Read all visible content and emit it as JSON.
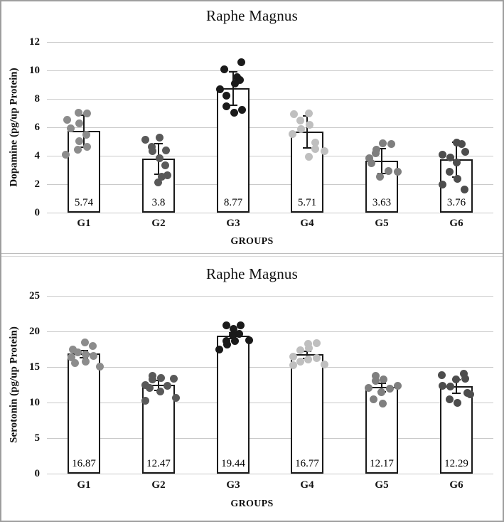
{
  "frame": {
    "outer_border_color": "#9e9e9e",
    "grid_color": "#c9c9c9",
    "bar_fill": "#ffffff",
    "bar_edge_color": "#1a1a1a"
  },
  "chart_data": [
    {
      "type": "bar",
      "title": "Raphe Magnus",
      "xlabel": "GROUPS",
      "ylabel": "Dopamine (pg/up Protein)",
      "ylim": [
        0,
        12
      ],
      "yticks": [
        0,
        2,
        4,
        6,
        8,
        10,
        12
      ],
      "grid": true,
      "legend": null,
      "categories": [
        "G1",
        "G2",
        "G3",
        "G4",
        "G5",
        "G6"
      ],
      "values": [
        5.74,
        3.8,
        8.77,
        5.71,
        3.63,
        3.76
      ],
      "bar_labels": [
        "5.74",
        "3.8",
        "8.77",
        "5.71",
        "3.63",
        "3.76"
      ],
      "error_sd": [
        1.15,
        1.1,
        1.2,
        1.15,
        0.9,
        1.25
      ],
      "point_colors": [
        "#8c8c8c",
        "#595959",
        "#1a1a1a",
        "#bfbfbf",
        "#7f7f7f",
        "#4d4d4d"
      ],
      "points": [
        [
          {
            "dx": -24,
            "v": 6.55
          },
          {
            "dx": -8,
            "v": 7.05
          },
          {
            "dx": 4,
            "v": 7.0
          },
          {
            "dx": -19,
            "v": 5.95
          },
          {
            "dx": -7,
            "v": 6.3
          },
          {
            "dx": 3,
            "v": 5.5
          },
          {
            "dx": -7,
            "v": 5.05
          },
          {
            "dx": -9,
            "v": 4.45
          },
          {
            "dx": 4,
            "v": 4.65
          },
          {
            "dx": -26,
            "v": 4.1
          }
        ],
        [
          {
            "dx": -19,
            "v": 5.15
          },
          {
            "dx": 1,
            "v": 5.3
          },
          {
            "dx": -10,
            "v": 4.65
          },
          {
            "dx": -9,
            "v": 4.35
          },
          {
            "dx": 1,
            "v": 3.85
          },
          {
            "dx": 10,
            "v": 4.4
          },
          {
            "dx": 9,
            "v": 3.35
          },
          {
            "dx": 12,
            "v": 2.65
          },
          {
            "dx": -1,
            "v": 2.15
          },
          {
            "dx": 4,
            "v": 2.55
          }
        ],
        [
          {
            "dx": 12,
            "v": 10.6
          },
          {
            "dx": -12,
            "v": 10.1
          },
          {
            "dx": 6,
            "v": 9.55
          },
          {
            "dx": 10,
            "v": 9.35
          },
          {
            "dx": 3,
            "v": 9.1
          },
          {
            "dx": -18,
            "v": 8.7
          },
          {
            "dx": -9,
            "v": 8.25
          },
          {
            "dx": -9,
            "v": 7.5
          },
          {
            "dx": 2,
            "v": 7.05
          },
          {
            "dx": 13,
            "v": 7.25
          }
        ],
        [
          {
            "dx": -19,
            "v": 6.95
          },
          {
            "dx": 2,
            "v": 7.0
          },
          {
            "dx": -10,
            "v": 6.5
          },
          {
            "dx": -9,
            "v": 5.9
          },
          {
            "dx": 3,
            "v": 6.2
          },
          {
            "dx": -21,
            "v": 5.55
          },
          {
            "dx": 11,
            "v": 4.95
          },
          {
            "dx": 11,
            "v": 4.5
          },
          {
            "dx": 24,
            "v": 4.35
          },
          {
            "dx": 2,
            "v": 3.95
          }
        ],
        [
          {
            "dx": 1,
            "v": 4.9
          },
          {
            "dx": 13,
            "v": 4.85
          },
          {
            "dx": -8,
            "v": 4.45
          },
          {
            "dx": -9,
            "v": 4.2
          },
          {
            "dx": -18,
            "v": 3.85
          },
          {
            "dx": -15,
            "v": 3.5
          },
          {
            "dx": 9,
            "v": 2.95
          },
          {
            "dx": 22,
            "v": 2.9
          },
          {
            "dx": -3,
            "v": 2.55
          }
        ],
        [
          {
            "dx": 1,
            "v": 4.95
          },
          {
            "dx": 8,
            "v": 4.85
          },
          {
            "dx": 13,
            "v": 4.3
          },
          {
            "dx": -19,
            "v": 4.1
          },
          {
            "dx": -8,
            "v": 3.9
          },
          {
            "dx": 1,
            "v": 3.55
          },
          {
            "dx": -9,
            "v": 2.9
          },
          {
            "dx": 2,
            "v": 2.4
          },
          {
            "dx": -19,
            "v": 2.0
          },
          {
            "dx": 12,
            "v": 1.65
          }
        ]
      ]
    },
    {
      "type": "bar",
      "title": "Raphe Magnus",
      "xlabel": "GROUPS",
      "ylabel": "Serotonin (pg/up Protein)",
      "ylim": [
        0,
        25
      ],
      "yticks": [
        0,
        5,
        10,
        15,
        20,
        25
      ],
      "grid": true,
      "legend": null,
      "categories": [
        "G1",
        "G2",
        "G3",
        "G4",
        "G5",
        "G6"
      ],
      "values": [
        16.87,
        12.47,
        19.44,
        16.77,
        12.17,
        12.29
      ],
      "bar_labels": [
        "16.87",
        "12.47",
        "19.44",
        "16.77",
        "12.17",
        "12.29"
      ],
      "error_sd": [
        0.55,
        0.75,
        0.45,
        0.55,
        0.65,
        1.0
      ],
      "point_colors": [
        "#8c8c8c",
        "#595959",
        "#1a1a1a",
        "#bfbfbf",
        "#7f7f7f",
        "#4d4d4d"
      ],
      "points": [
        [
          {
            "dx": 1,
            "v": 18.5
          },
          {
            "dx": 12,
            "v": 18.0
          },
          {
            "dx": -16,
            "v": 17.5
          },
          {
            "dx": -9,
            "v": 17.1
          },
          {
            "dx": -18,
            "v": 16.4
          },
          {
            "dx": -13,
            "v": 15.6
          },
          {
            "dx": 2,
            "v": 16.8
          },
          {
            "dx": 2,
            "v": 15.8
          },
          {
            "dx": 13,
            "v": 16.6
          },
          {
            "dx": 22,
            "v": 15.1
          }
        ],
        [
          {
            "dx": -9,
            "v": 13.8
          },
          {
            "dx": -9,
            "v": 13.3
          },
          {
            "dx": 3,
            "v": 13.45
          },
          {
            "dx": 21,
            "v": 13.4
          },
          {
            "dx": -19,
            "v": 12.45
          },
          {
            "dx": -13,
            "v": 12.1
          },
          {
            "dx": 12,
            "v": 12.4
          },
          {
            "dx": 2,
            "v": 11.6
          },
          {
            "dx": 24,
            "v": 10.7
          },
          {
            "dx": -19,
            "v": 10.25
          }
        ],
        [
          {
            "dx": -9,
            "v": 20.9
          },
          {
            "dx": 1,
            "v": 20.4
          },
          {
            "dx": 11,
            "v": 20.8
          },
          {
            "dx": 0,
            "v": 19.5
          },
          {
            "dx": 9,
            "v": 19.7
          },
          {
            "dx": -9,
            "v": 18.7
          },
          {
            "dx": -8,
            "v": 18.2
          },
          {
            "dx": 3,
            "v": 18.6
          },
          {
            "dx": 23,
            "v": 18.8
          },
          {
            "dx": -19,
            "v": 17.5
          }
        ],
        [
          {
            "dx": 1,
            "v": 18.3
          },
          {
            "dx": 13,
            "v": 18.4
          },
          {
            "dx": -10,
            "v": 17.4
          },
          {
            "dx": 2,
            "v": 17.7
          },
          {
            "dx": -20,
            "v": 16.5
          },
          {
            "dx": -10,
            "v": 15.8
          },
          {
            "dx": 1,
            "v": 16.1
          },
          {
            "dx": 13,
            "v": 16.3
          },
          {
            "dx": -20,
            "v": 15.3
          },
          {
            "dx": 24,
            "v": 15.4
          }
        ],
        [
          {
            "dx": -9,
            "v": 13.8
          },
          {
            "dx": -9,
            "v": 13.1
          },
          {
            "dx": 2,
            "v": 13.3
          },
          {
            "dx": -19,
            "v": 12.1
          },
          {
            "dx": 11,
            "v": 12.0
          },
          {
            "dx": 22,
            "v": 12.4
          },
          {
            "dx": -1,
            "v": 11.5
          },
          {
            "dx": -12,
            "v": 10.5
          },
          {
            "dx": 1,
            "v": 9.9
          }
        ],
        [
          {
            "dx": -20,
            "v": 13.9
          },
          {
            "dx": 11,
            "v": 14.1
          },
          {
            "dx": 13,
            "v": 13.4
          },
          {
            "dx": 0,
            "v": 13.3
          },
          {
            "dx": -19,
            "v": 12.4
          },
          {
            "dx": -8,
            "v": 12.3
          },
          {
            "dx": 16,
            "v": 11.4
          },
          {
            "dx": 20,
            "v": 11.2
          },
          {
            "dx": -9,
            "v": 10.5
          },
          {
            "dx": 2,
            "v": 10.0
          }
        ]
      ]
    }
  ]
}
